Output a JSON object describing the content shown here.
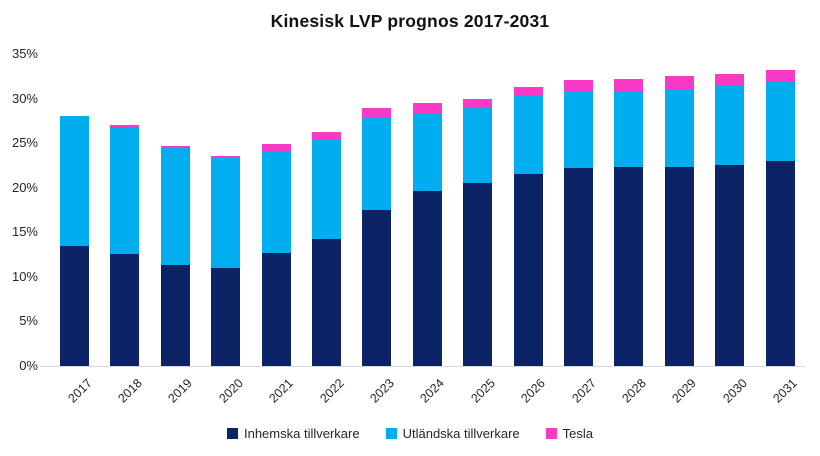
{
  "title": "Kinesisk LVP prognos 2017-2031",
  "colors": {
    "inhemska": "#0c2365",
    "utlandska": "#00aeef",
    "tesla": "#f93ac6",
    "axis_line": "#d9d9d9",
    "text": "#262626"
  },
  "chart_data": {
    "type": "bar",
    "stacked": true,
    "title": "Kinesisk LVP prognos 2017-2031",
    "xlabel": "",
    "ylabel": "",
    "ylim": [
      0,
      35
    ],
    "grid": false,
    "legend_position": "bottom",
    "y_ticks": [
      "0%",
      "5%",
      "10%",
      "15%",
      "20%",
      "25%",
      "30%",
      "35%"
    ],
    "categories": [
      "2017",
      "2018",
      "2019",
      "2020",
      "2021",
      "2022",
      "2023",
      "2024",
      "2025",
      "2026",
      "2027",
      "2028",
      "2029",
      "2030",
      "2031"
    ],
    "series": [
      {
        "name": "Inhemska tillverkare",
        "color": "#0c2365",
        "values": [
          13.5,
          12.6,
          11.3,
          11.0,
          12.7,
          14.3,
          17.5,
          19.6,
          20.5,
          21.5,
          22.2,
          22.3,
          22.3,
          22.6,
          23.0
        ]
      },
      {
        "name": "Utländska tillverkare",
        "color": "#00aeef",
        "values": [
          14.5,
          14.2,
          13.2,
          12.3,
          11.3,
          11.1,
          10.4,
          8.7,
          8.5,
          8.8,
          8.7,
          8.6,
          8.8,
          8.8,
          8.9
        ]
      },
      {
        "name": "Tesla",
        "color": "#f93ac6",
        "values": [
          0.0,
          0.2,
          0.2,
          0.3,
          0.9,
          0.9,
          1.1,
          1.2,
          1.0,
          1.0,
          1.2,
          1.3,
          1.4,
          1.4,
          1.3
        ]
      }
    ]
  }
}
